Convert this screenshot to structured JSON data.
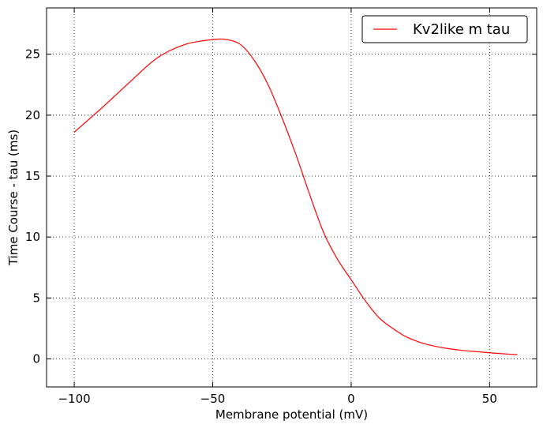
{
  "chart_data": {
    "type": "line",
    "title": "",
    "xlabel": "Membrane potential (mV)",
    "ylabel": "Time Course - tau (ms)",
    "xlim": [
      -110,
      67
    ],
    "ylim": [
      -2.3,
      28.8
    ],
    "xticks": [
      -100,
      -50,
      0,
      50
    ],
    "yticks": [
      0,
      5,
      10,
      15,
      20,
      25
    ],
    "grid": true,
    "legend_position": "top-right",
    "series": [
      {
        "name": "Kv2like m tau",
        "color": "#ff0000",
        "x": [
          -100,
          -90,
          -80,
          -70,
          -60,
          -50,
          -45,
          -40,
          -35,
          -30,
          -25,
          -20,
          -15,
          -10,
          -5,
          0,
          5,
          10,
          15,
          20,
          25,
          30,
          35,
          40,
          45,
          50,
          55,
          60
        ],
        "y": [
          18.6,
          20.6,
          22.7,
          24.7,
          25.8,
          26.2,
          26.2,
          25.8,
          24.5,
          22.5,
          19.8,
          16.8,
          13.5,
          10.4,
          8.2,
          6.5,
          4.8,
          3.4,
          2.5,
          1.8,
          1.35,
          1.05,
          0.85,
          0.7,
          0.6,
          0.5,
          0.42,
          0.35
        ]
      }
    ]
  }
}
